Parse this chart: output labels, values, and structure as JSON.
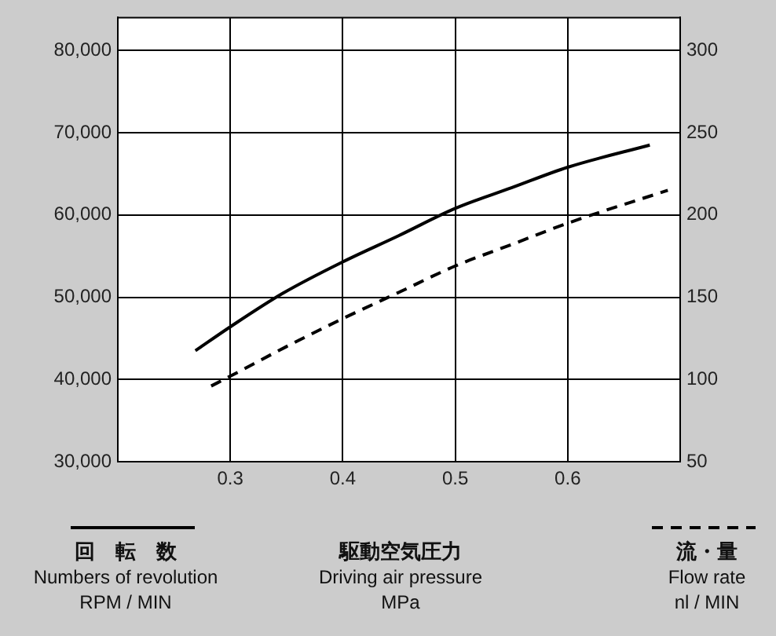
{
  "chart_data": {
    "type": "line",
    "xlabel": "駆動空気圧力\nDriving air pressure\nMPa",
    "ylabel": "回　転　数\nNumbers of revolution\nRPM / MIN",
    "y2label": "流・量\nFlow rate\nnl / MIN",
    "series": [
      {
        "color": "#000000",
        "line_style": "solid",
        "x": [
          0.269,
          0.3,
          0.347,
          0.4,
          0.45,
          0.5,
          0.55,
          0.6,
          0.673
        ],
        "values": [
          43500,
          46400,
          50500,
          54300,
          57500,
          60800,
          63300,
          65800,
          68500
        ]
      },
      {
        "color": "#000000",
        "line_style": "dashed",
        "axis": "y2",
        "x": [
          0.283,
          0.3,
          0.35,
          0.4,
          0.45,
          0.5,
          0.55,
          0.6,
          0.689
        ],
        "values": [
          96,
          102,
          120,
          137,
          153,
          169,
          182,
          195,
          215
        ]
      }
    ],
    "xlim": [
      0.2,
      0.7
    ],
    "xticks": [
      0.3,
      0.4,
      0.5,
      0.6
    ],
    "ylim": [
      30000,
      84000
    ],
    "yticks": [
      {
        "value": 30000,
        "label": "30,000"
      },
      {
        "value": 40000,
        "label": "40,000"
      },
      {
        "value": 50000,
        "label": "50,000"
      },
      {
        "value": 60000,
        "label": "60,000"
      },
      {
        "value": 70000,
        "label": "70,000"
      },
      {
        "value": 80000,
        "label": "80,000"
      }
    ],
    "y2lim": [
      50,
      320
    ],
    "y2ticks": [
      50,
      100,
      150,
      200,
      250,
      300
    ],
    "grid": true,
    "legend": false,
    "marker": "none"
  }
}
